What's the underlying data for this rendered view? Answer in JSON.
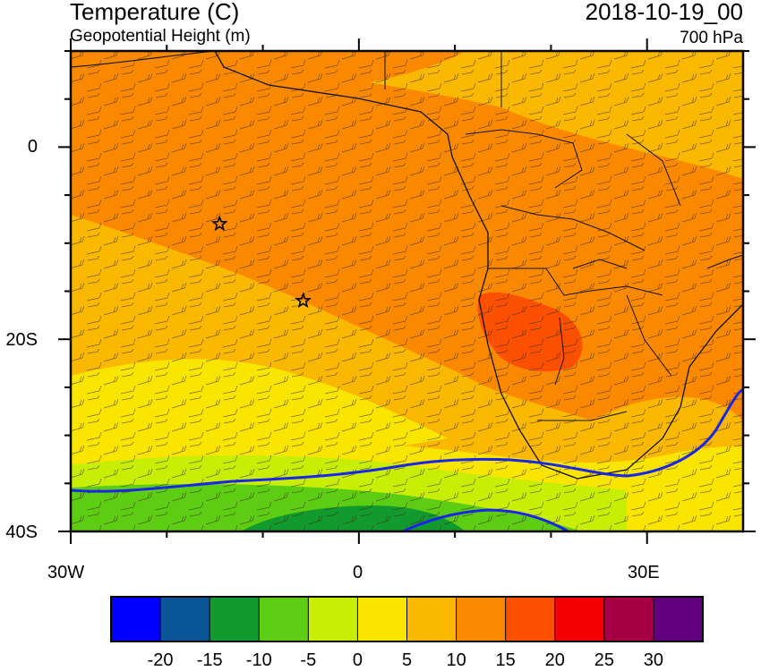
{
  "header": {
    "title": "Temperature (C)",
    "subtitle": "Geopotential Height (m)",
    "datetime": "2018-10-19_00",
    "level": "700 hPa"
  },
  "map": {
    "lat_labels": [
      "0",
      "20S",
      "40S"
    ],
    "lon_labels": [
      "30W",
      "0",
      "30E"
    ],
    "markers": [
      {
        "name": "star-marker-1",
        "lon": -14.5,
        "lat": -8.0
      },
      {
        "name": "star-marker-2",
        "lon": -5.8,
        "lat": -16.0
      }
    ]
  },
  "colorbar": {
    "labels": [
      "-20",
      "-15",
      "-10",
      "-5",
      "0",
      "5",
      "10",
      "15",
      "20",
      "25",
      "30"
    ],
    "colors": [
      "#0000ff",
      "#0a5597",
      "#139a2f",
      "#5ccd12",
      "#c8ee05",
      "#f9e500",
      "#fbb800",
      "#fb8900",
      "#fa5000",
      "#f50000",
      "#a50043",
      "#620080"
    ]
  }
}
